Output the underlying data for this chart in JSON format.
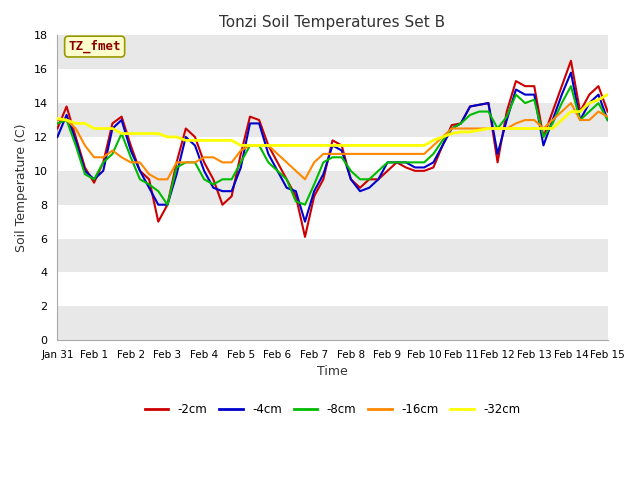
{
  "title": "Tonzi Soil Temperatures Set B",
  "xlabel": "Time",
  "ylabel": "Soil Temperature (C)",
  "ylim": [
    0,
    18
  ],
  "yticks": [
    0,
    2,
    4,
    6,
    8,
    10,
    12,
    14,
    16,
    18
  ],
  "annotation": "TZ_fmet",
  "fig_facecolor": "#ffffff",
  "plot_bg_bands": [
    [
      16,
      18,
      "#e8e8e8"
    ],
    [
      12,
      14,
      "#e8e8e8"
    ],
    [
      8,
      10,
      "#e8e8e8"
    ],
    [
      4,
      6,
      "#e8e8e8"
    ],
    [
      0,
      2,
      "#e8e8e8"
    ]
  ],
  "series": {
    "-2cm": {
      "color": "#cc0000",
      "lw": 1.5
    },
    "-4cm": {
      "color": "#0000cc",
      "lw": 1.5
    },
    "-8cm": {
      "color": "#00bb00",
      "lw": 1.5
    },
    "-16cm": {
      "color": "#ff8800",
      "lw": 1.5
    },
    "-32cm": {
      "color": "#ffff00",
      "lw": 2.0
    }
  },
  "x_tick_labels": [
    "Jan 31",
    "Feb 1",
    "Feb 2",
    "Feb 3",
    "Feb 4",
    "Feb 5",
    "Feb 6",
    "Feb 7",
    "Feb 8",
    "Feb 9",
    "Feb 10",
    "Feb 11",
    "Feb 12",
    "Feb 13",
    "Feb 14",
    "Feb 15"
  ],
  "data": {
    "x": [
      0,
      0.25,
      0.5,
      0.75,
      1,
      1.25,
      1.5,
      1.75,
      2,
      2.25,
      2.5,
      2.75,
      3,
      3.25,
      3.5,
      3.75,
      4,
      4.25,
      4.5,
      4.75,
      5,
      5.25,
      5.5,
      5.75,
      6,
      6.25,
      6.5,
      6.75,
      7,
      7.25,
      7.5,
      7.75,
      8,
      8.25,
      8.5,
      8.75,
      9,
      9.25,
      9.5,
      9.75,
      10,
      10.25,
      10.5,
      10.75,
      11,
      11.25,
      11.5,
      11.75,
      12,
      12.25,
      12.5,
      12.75,
      13,
      13.25,
      13.5,
      13.75,
      14,
      14.25,
      14.5,
      14.75,
      15
    ],
    "-2cm": [
      12.5,
      13.8,
      12.0,
      10.2,
      9.3,
      10.5,
      12.8,
      13.2,
      11.5,
      10.0,
      9.5,
      7.0,
      8.0,
      10.5,
      12.5,
      12.0,
      10.5,
      9.5,
      8.0,
      8.5,
      11.0,
      13.2,
      13.0,
      11.5,
      10.5,
      9.5,
      8.5,
      6.1,
      8.5,
      9.5,
      11.8,
      11.5,
      9.5,
      9.0,
      9.5,
      9.5,
      10.0,
      10.5,
      10.2,
      10.0,
      10.0,
      10.2,
      11.5,
      12.7,
      12.8,
      13.8,
      13.9,
      14.0,
      10.5,
      13.5,
      15.3,
      15.0,
      15.0,
      12.0,
      13.5,
      15.0,
      16.5,
      13.5,
      14.5,
      15.0,
      13.5
    ],
    "-4cm": [
      12.0,
      13.3,
      11.8,
      10.0,
      9.5,
      10.0,
      12.5,
      13.0,
      11.2,
      10.0,
      9.0,
      8.0,
      8.0,
      9.8,
      12.0,
      11.5,
      10.0,
      9.0,
      8.8,
      8.8,
      10.2,
      12.8,
      12.8,
      11.0,
      10.0,
      9.0,
      8.8,
      7.0,
      8.8,
      9.8,
      11.5,
      11.2,
      9.5,
      8.8,
      9.0,
      9.5,
      10.5,
      10.5,
      10.5,
      10.2,
      10.2,
      10.5,
      11.5,
      12.5,
      12.8,
      13.8,
      13.9,
      14.0,
      11.0,
      13.0,
      14.8,
      14.5,
      14.5,
      11.5,
      13.0,
      14.5,
      15.8,
      13.0,
      14.0,
      14.5,
      13.0
    ],
    "-8cm": [
      12.8,
      13.0,
      11.5,
      9.8,
      9.5,
      10.5,
      11.0,
      12.2,
      10.8,
      9.5,
      9.2,
      8.8,
      8.0,
      10.2,
      10.5,
      10.5,
      9.5,
      9.2,
      9.5,
      9.5,
      10.5,
      11.5,
      11.5,
      10.5,
      10.0,
      9.5,
      8.2,
      8.0,
      9.2,
      10.5,
      10.8,
      10.8,
      10.0,
      9.5,
      9.5,
      10.0,
      10.5,
      10.5,
      10.5,
      10.5,
      10.5,
      11.0,
      11.8,
      12.5,
      12.8,
      13.3,
      13.5,
      13.5,
      12.5,
      13.2,
      14.5,
      14.0,
      14.2,
      12.0,
      12.8,
      14.0,
      15.0,
      13.0,
      13.5,
      14.0,
      13.0
    ],
    "-16cm": [
      13.0,
      13.0,
      12.5,
      11.5,
      10.8,
      10.8,
      11.2,
      10.8,
      10.5,
      10.5,
      9.8,
      9.5,
      9.5,
      10.5,
      10.5,
      10.5,
      10.8,
      10.8,
      10.5,
      10.5,
      11.2,
      11.5,
      11.5,
      11.5,
      11.0,
      10.5,
      10.0,
      9.5,
      10.5,
      11.0,
      11.0,
      11.0,
      11.0,
      11.0,
      11.0,
      11.0,
      11.0,
      11.0,
      11.0,
      11.0,
      11.0,
      11.5,
      12.0,
      12.5,
      12.5,
      12.5,
      12.5,
      12.5,
      12.5,
      12.5,
      12.8,
      13.0,
      13.0,
      12.5,
      13.0,
      13.5,
      14.0,
      13.0,
      13.0,
      13.5,
      13.2
    ],
    "-32cm": [
      13.1,
      13.0,
      12.8,
      12.8,
      12.5,
      12.5,
      12.5,
      12.2,
      12.2,
      12.2,
      12.2,
      12.2,
      12.0,
      12.0,
      11.8,
      11.8,
      11.8,
      11.8,
      11.8,
      11.8,
      11.5,
      11.5,
      11.5,
      11.5,
      11.5,
      11.5,
      11.5,
      11.5,
      11.5,
      11.5,
      11.5,
      11.5,
      11.5,
      11.5,
      11.5,
      11.5,
      11.5,
      11.5,
      11.5,
      11.5,
      11.5,
      11.8,
      12.0,
      12.2,
      12.3,
      12.3,
      12.4,
      12.5,
      12.5,
      12.5,
      12.5,
      12.5,
      12.5,
      12.5,
      12.5,
      13.0,
      13.5,
      13.5,
      14.0,
      14.2,
      14.5
    ]
  }
}
